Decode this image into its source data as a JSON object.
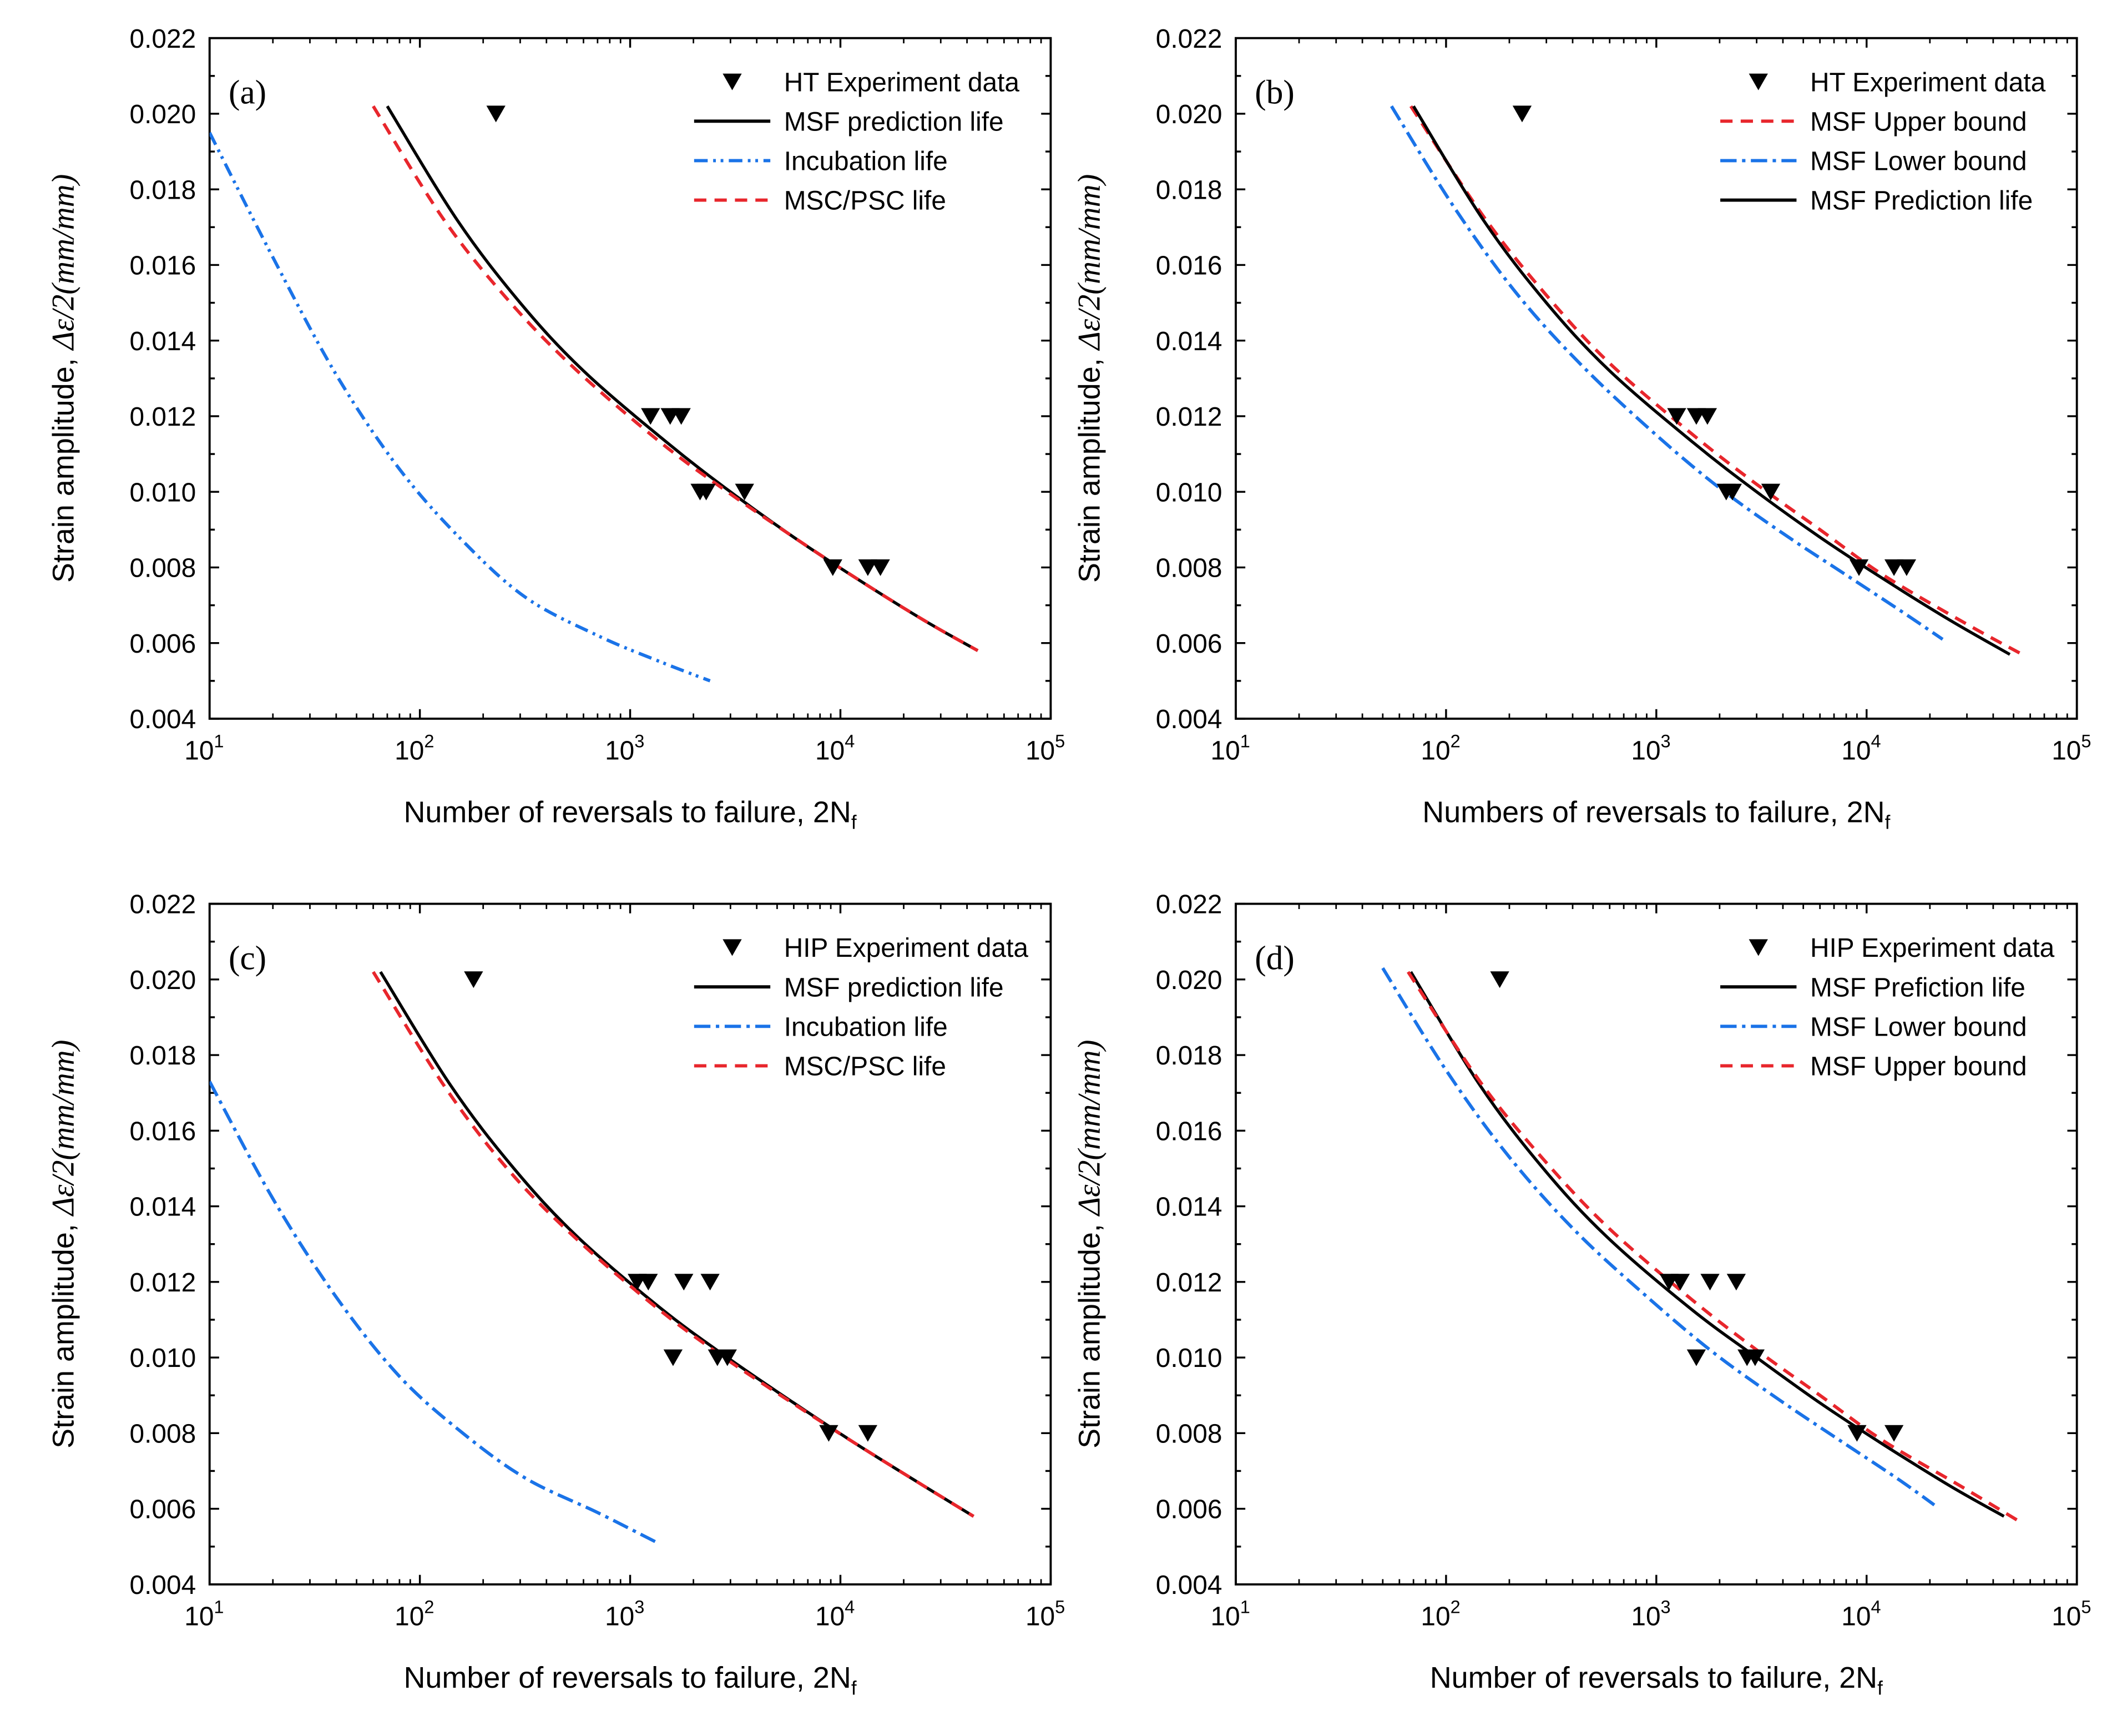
{
  "figure": {
    "colors": {
      "experiment": "#000000",
      "msf": "#000000",
      "incubation": "#1a73e8",
      "msc": "#e8262c",
      "lower": "#1a73e8",
      "upper": "#e8262c"
    }
  },
  "chart_data": [
    {
      "type": "line",
      "panel": "(a)",
      "xlabel": "Number of reversals to failure, 2N",
      "xlabel_sub": "f",
      "ylabel_prefix": "Strain amplitude, ",
      "ylabel_math": "Δε/2(mm/mm)",
      "xscale": "log",
      "xlim": [
        10,
        100000
      ],
      "ylim": [
        0.004,
        0.022
      ],
      "xticks": [
        {
          "base": "10",
          "exp": "1"
        },
        {
          "base": "10",
          "exp": "2"
        },
        {
          "base": "10",
          "exp": "3"
        },
        {
          "base": "10",
          "exp": "4"
        },
        {
          "base": "10",
          "exp": "5"
        }
      ],
      "yticks": [
        "0.004",
        "0.006",
        "0.008",
        "0.010",
        "0.012",
        "0.014",
        "0.016",
        "0.018",
        "0.020",
        "0.022"
      ],
      "legend": {
        "position": "top-right"
      },
      "experiment": {
        "name": "HT Experiment data",
        "points": [
          [
            230,
            0.02
          ],
          [
            1250,
            0.012
          ],
          [
            1550,
            0.012
          ],
          [
            1750,
            0.012
          ],
          [
            2150,
            0.01
          ],
          [
            2300,
            0.01
          ],
          [
            3500,
            0.01
          ],
          [
            9200,
            0.008
          ],
          [
            13500,
            0.008
          ],
          [
            15500,
            0.008
          ]
        ]
      },
      "series": [
        {
          "name": "MSF prediction life",
          "style": "solid",
          "color": "#000000",
          "points": [
            [
              70,
              0.0202
            ],
            [
              150,
              0.0172
            ],
            [
              300,
              0.015
            ],
            [
              600,
              0.0132
            ],
            [
              1500,
              0.0113
            ],
            [
              3000,
              0.01
            ],
            [
              6000,
              0.0088
            ],
            [
              12000,
              0.0077
            ],
            [
              25000,
              0.0066
            ],
            [
              45000,
              0.0058
            ]
          ]
        },
        {
          "name": "Incubation life",
          "style": "dashdotdot",
          "color": "#1a73e8",
          "points": [
            [
              10,
              0.0195
            ],
            [
              20,
              0.0162
            ],
            [
              40,
              0.0131
            ],
            [
              80,
              0.0106
            ],
            [
              160,
              0.0087
            ],
            [
              320,
              0.0072
            ],
            [
              700,
              0.0062
            ],
            [
              1400,
              0.0055
            ],
            [
              2400,
              0.005
            ]
          ]
        },
        {
          "name": "MSC/PSC life",
          "style": "dashed",
          "color": "#e8262c",
          "points": [
            [
              60,
              0.0202
            ],
            [
              130,
              0.0172
            ],
            [
              270,
              0.015
            ],
            [
              560,
              0.0132
            ],
            [
              1400,
              0.0113
            ],
            [
              2900,
              0.01
            ],
            [
              6000,
              0.0088
            ],
            [
              12000,
              0.0077
            ],
            [
              25000,
              0.0066
            ],
            [
              45000,
              0.0058
            ]
          ]
        }
      ]
    },
    {
      "type": "line",
      "panel": "(b)",
      "xlabel": "Numbers of reversals to failure, 2N",
      "xlabel_sub": "f",
      "ylabel_prefix": "Strain amplitude, ",
      "ylabel_math": "Δε/2(mm/mm)",
      "xscale": "log",
      "xlim": [
        10,
        100000
      ],
      "ylim": [
        0.004,
        0.022
      ],
      "xticks": [
        {
          "base": "10",
          "exp": "1"
        },
        {
          "base": "10",
          "exp": "2"
        },
        {
          "base": "10",
          "exp": "3"
        },
        {
          "base": "10",
          "exp": "4"
        },
        {
          "base": "10",
          "exp": "5"
        }
      ],
      "yticks": [
        "0.004",
        "0.006",
        "0.008",
        "0.010",
        "0.012",
        "0.014",
        "0.016",
        "0.018",
        "0.020",
        "0.022"
      ],
      "legend": {
        "position": "top-right"
      },
      "experiment": {
        "name": "HT Experiment data",
        "points": [
          [
            230,
            0.02
          ],
          [
            1250,
            0.012
          ],
          [
            1550,
            0.012
          ],
          [
            1750,
            0.012
          ],
          [
            2150,
            0.01
          ],
          [
            2300,
            0.01
          ],
          [
            3500,
            0.01
          ],
          [
            9200,
            0.008
          ],
          [
            13500,
            0.008
          ],
          [
            15500,
            0.008
          ]
        ]
      },
      "series": [
        {
          "name": "MSF Upper bound",
          "style": "dashed",
          "color": "#e8262c",
          "points": [
            [
              68,
              0.0202
            ],
            [
              150,
              0.0173
            ],
            [
              300,
              0.0152
            ],
            [
              600,
              0.0134
            ],
            [
              1500,
              0.0115
            ],
            [
              3000,
              0.0102
            ],
            [
              6000,
              0.009
            ],
            [
              12000,
              0.0078
            ],
            [
              30000,
              0.0065
            ],
            [
              55000,
              0.0057
            ]
          ]
        },
        {
          "name": "MSF Lower bound",
          "style": "dashdot",
          "color": "#1a73e8",
          "points": [
            [
              55,
              0.0202
            ],
            [
              110,
              0.0175
            ],
            [
              220,
              0.0152
            ],
            [
              450,
              0.0133
            ],
            [
              1000,
              0.0115
            ],
            [
              2000,
              0.0101
            ],
            [
              4000,
              0.0089
            ],
            [
              8000,
              0.0078
            ],
            [
              15000,
              0.0068
            ],
            [
              23000,
              0.0061
            ]
          ]
        },
        {
          "name": "MSF Prediction life",
          "style": "solid",
          "color": "#000000",
          "points": [
            [
              70,
              0.0202
            ],
            [
              150,
              0.0172
            ],
            [
              300,
              0.015
            ],
            [
              600,
              0.0132
            ],
            [
              1500,
              0.0113
            ],
            [
              3000,
              0.01
            ],
            [
              6000,
              0.0088
            ],
            [
              12000,
              0.0077
            ],
            [
              25000,
              0.0066
            ],
            [
              48000,
              0.0057
            ]
          ]
        }
      ]
    },
    {
      "type": "line",
      "panel": "(c)",
      "xlabel": "Number of reversals to failure, 2N",
      "xlabel_sub": "f",
      "ylabel_prefix": "Strain amplitude, ",
      "ylabel_math": "Δε/2(mm/mm)",
      "xscale": "log",
      "xlim": [
        10,
        100000
      ],
      "ylim": [
        0.004,
        0.022
      ],
      "xticks": [
        {
          "base": "10",
          "exp": "1"
        },
        {
          "base": "10",
          "exp": "2"
        },
        {
          "base": "10",
          "exp": "3"
        },
        {
          "base": "10",
          "exp": "4"
        },
        {
          "base": "10",
          "exp": "5"
        }
      ],
      "yticks": [
        "0.004",
        "0.006",
        "0.008",
        "0.010",
        "0.012",
        "0.014",
        "0.016",
        "0.018",
        "0.020",
        "0.022"
      ],
      "legend": {
        "position": "top-right"
      },
      "experiment": {
        "name": "HIP Experiment data",
        "points": [
          [
            180,
            0.02
          ],
          [
            1080,
            0.012
          ],
          [
            1220,
            0.012
          ],
          [
            1800,
            0.012
          ],
          [
            2400,
            0.012
          ],
          [
            1600,
            0.01
          ],
          [
            2600,
            0.01
          ],
          [
            2900,
            0.01
          ],
          [
            8800,
            0.008
          ],
          [
            13500,
            0.008
          ]
        ]
      },
      "series": [
        {
          "name": "MSF prediction life",
          "style": "solid",
          "color": "#000000",
          "points": [
            [
              65,
              0.0202
            ],
            [
              140,
              0.0172
            ],
            [
              280,
              0.015
            ],
            [
              560,
              0.0132
            ],
            [
              1400,
              0.0113
            ],
            [
              2900,
              0.01
            ],
            [
              6000,
              0.0088
            ],
            [
              12000,
              0.0077
            ],
            [
              25000,
              0.0066
            ],
            [
              43000,
              0.0058
            ]
          ]
        },
        {
          "name": "Incubation life",
          "style": "dashdot",
          "color": "#1a73e8",
          "points": [
            [
              10,
              0.0173
            ],
            [
              20,
              0.0142
            ],
            [
              40,
              0.0116
            ],
            [
              80,
              0.0095
            ],
            [
              160,
              0.008
            ],
            [
              320,
              0.0068
            ],
            [
              700,
              0.0059
            ],
            [
              1350,
              0.0051
            ]
          ]
        },
        {
          "name": "MSC/PSC life",
          "style": "dashed",
          "color": "#e8262c",
          "points": [
            [
              60,
              0.0202
            ],
            [
              130,
              0.0172
            ],
            [
              260,
              0.015
            ],
            [
              540,
              0.0132
            ],
            [
              1350,
              0.0113
            ],
            [
              2800,
              0.01
            ],
            [
              5900,
              0.0088
            ],
            [
              12000,
              0.0077
            ],
            [
              25000,
              0.0066
            ],
            [
              43000,
              0.0058
            ]
          ]
        }
      ]
    },
    {
      "type": "line",
      "panel": "(d)",
      "xlabel": "Number of reversals to failure, 2N",
      "xlabel_sub": "f",
      "ylabel_prefix": "Strain amplitude, ",
      "ylabel_math": "Δε/2(mm/mm)",
      "xscale": "log",
      "xlim": [
        10,
        100000
      ],
      "ylim": [
        0.004,
        0.022
      ],
      "xticks": [
        {
          "base": "10",
          "exp": "1"
        },
        {
          "base": "10",
          "exp": "2"
        },
        {
          "base": "10",
          "exp": "3"
        },
        {
          "base": "10",
          "exp": "4"
        },
        {
          "base": "10",
          "exp": "5"
        }
      ],
      "yticks": [
        "0.004",
        "0.006",
        "0.008",
        "0.010",
        "0.012",
        "0.014",
        "0.016",
        "0.018",
        "0.020",
        "0.022"
      ],
      "legend": {
        "position": "top-right"
      },
      "experiment": {
        "name": "HIP Experiment data",
        "points": [
          [
            180,
            0.02
          ],
          [
            1150,
            0.012
          ],
          [
            1300,
            0.012
          ],
          [
            1800,
            0.012
          ],
          [
            2400,
            0.012
          ],
          [
            1550,
            0.01
          ],
          [
            2700,
            0.01
          ],
          [
            2950,
            0.01
          ],
          [
            9000,
            0.008
          ],
          [
            13500,
            0.008
          ]
        ]
      },
      "series": [
        {
          "name": "MSF Prefiction life",
          "style": "solid",
          "color": "#000000",
          "points": [
            [
              68,
              0.0202
            ],
            [
              145,
              0.0172
            ],
            [
              290,
              0.015
            ],
            [
              580,
              0.0132
            ],
            [
              1450,
              0.0113
            ],
            [
              3000,
              0.01
            ],
            [
              6000,
              0.0088
            ],
            [
              12000,
              0.0077
            ],
            [
              25000,
              0.0066
            ],
            [
              45000,
              0.0058
            ]
          ]
        },
        {
          "name": "MSF Lower bound",
          "style": "dashdot",
          "color": "#1a73e8",
          "points": [
            [
              50,
              0.0203
            ],
            [
              100,
              0.0176
            ],
            [
              200,
              0.0153
            ],
            [
              420,
              0.0133
            ],
            [
              950,
              0.0115
            ],
            [
              1900,
              0.0101
            ],
            [
              3800,
              0.0089
            ],
            [
              7500,
              0.0078
            ],
            [
              14000,
              0.0068
            ],
            [
              21000,
              0.0061
            ]
          ]
        },
        {
          "name": "MSF Upper bound",
          "style": "dashed",
          "color": "#e8262c",
          "points": [
            [
              66,
              0.0202
            ],
            [
              145,
              0.0173
            ],
            [
              295,
              0.0152
            ],
            [
              600,
              0.0134
            ],
            [
              1500,
              0.0115
            ],
            [
              3000,
              0.0102
            ],
            [
              6000,
              0.009
            ],
            [
              12000,
              0.0078
            ],
            [
              28000,
              0.0066
            ],
            [
              52000,
              0.0057
            ]
          ]
        }
      ]
    }
  ]
}
